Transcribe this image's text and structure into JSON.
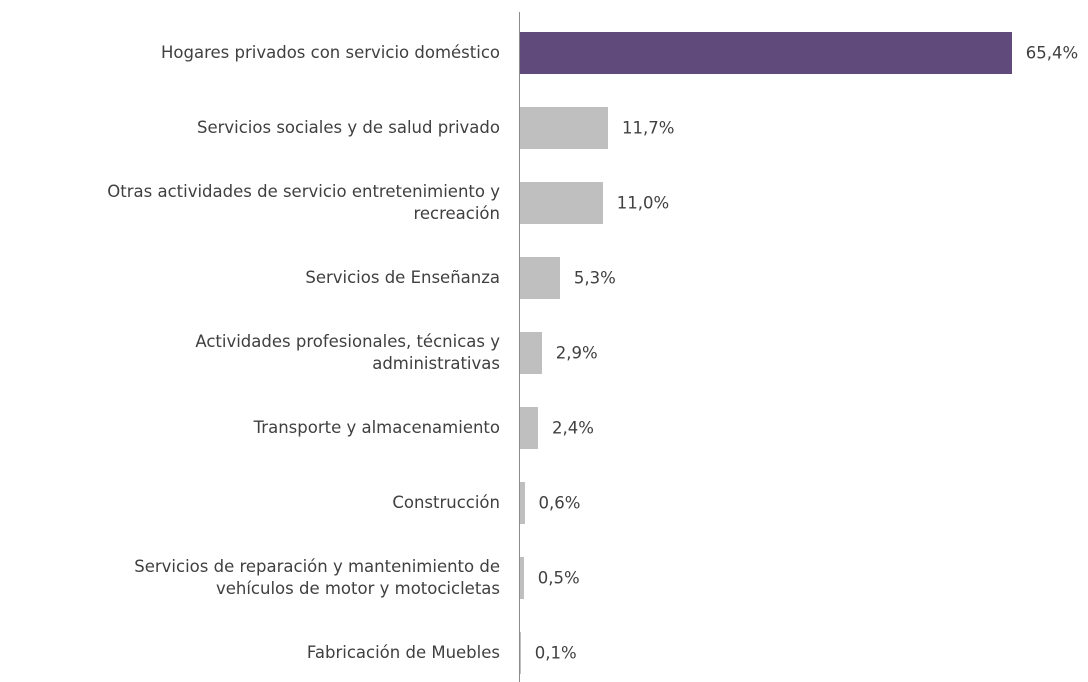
{
  "chart_data": {
    "type": "bar",
    "orientation": "horizontal",
    "categories": [
      "Hogares privados con servicio doméstico",
      "Servicios sociales y de salud privado",
      "Otras actividades de servicio entretenimiento y\nrecreación",
      "Servicios de Enseñanza",
      "Actividades profesionales, técnicas y\nadministrativas",
      "Transporte y almacenamiento",
      "Construcción",
      "Servicios de reparación y mantenimiento de\nvehículos de motor y motocicletas",
      "Fabricación de Muebles"
    ],
    "values": [
      65.4,
      11.7,
      11.0,
      5.3,
      2.9,
      2.4,
      0.6,
      0.5,
      0.1
    ],
    "value_labels": [
      "65,4%",
      "11,7%",
      "11,0%",
      "5,3%",
      "2,9%",
      "2,4%",
      "0,6%",
      "0,5%",
      "0,1%"
    ],
    "colors": [
      "#604a7b",
      "#bfbfbf",
      "#bfbfbf",
      "#bfbfbf",
      "#bfbfbf",
      "#bfbfbf",
      "#bfbfbf",
      "#bfbfbf",
      "#bfbfbf"
    ]
  }
}
